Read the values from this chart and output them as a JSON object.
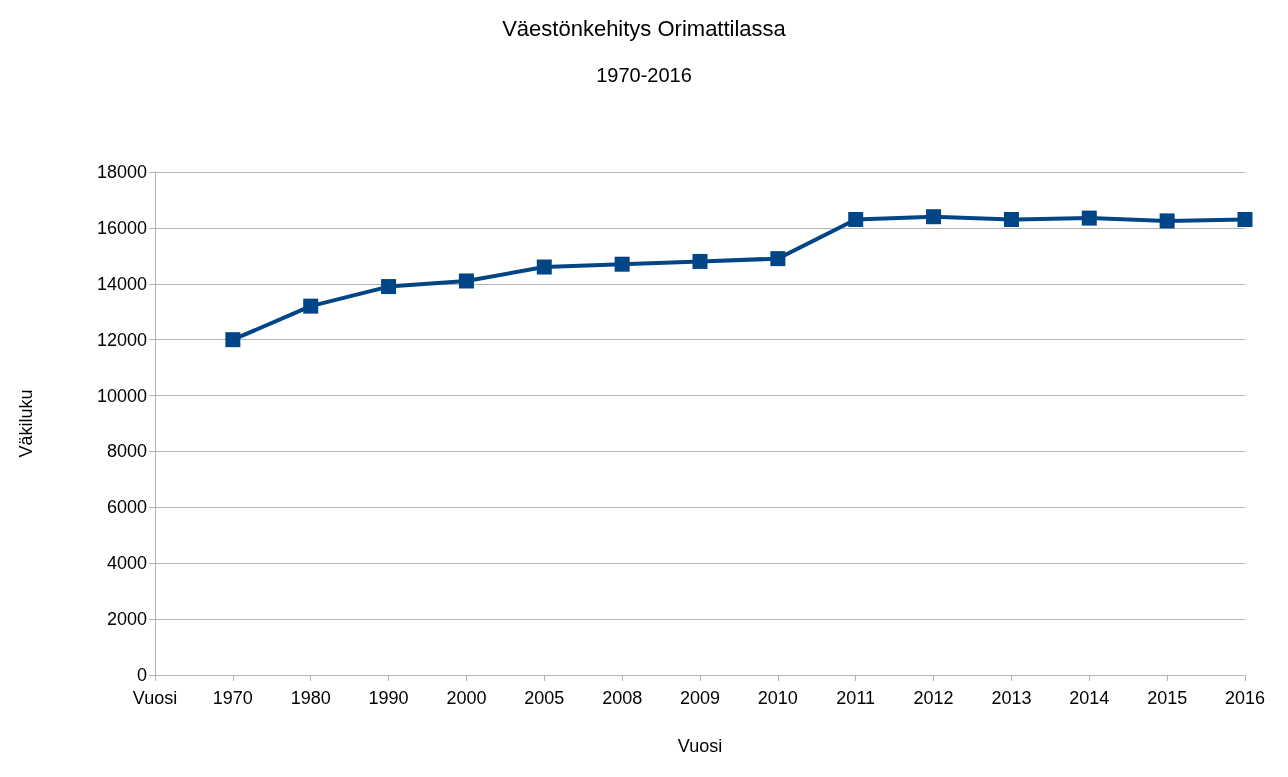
{
  "chart_data": {
    "type": "line",
    "title": "Väestönkehitys Orimattilassa",
    "subtitle": "1970-2016",
    "xlabel": "Vuosi",
    "ylabel": "Väkiluku",
    "categories": [
      "Vuosi",
      "1970",
      "1980",
      "1990",
      "2000",
      "2005",
      "2008",
      "2009",
      "2010",
      "2011",
      "2012",
      "2013",
      "2014",
      "2015",
      "2016"
    ],
    "series": [
      {
        "color": "#004586",
        "values": [
          null,
          12000,
          13200,
          13900,
          14100,
          14600,
          14700,
          14800,
          14900,
          16300,
          16400,
          16300,
          16350,
          16250,
          16300
        ]
      }
    ],
    "ylim": [
      0,
      18000
    ],
    "yticks": [
      0,
      2000,
      4000,
      6000,
      8000,
      10000,
      12000,
      14000,
      16000,
      18000
    ],
    "grid": "y",
    "marker": "square",
    "line_style": "solid"
  }
}
